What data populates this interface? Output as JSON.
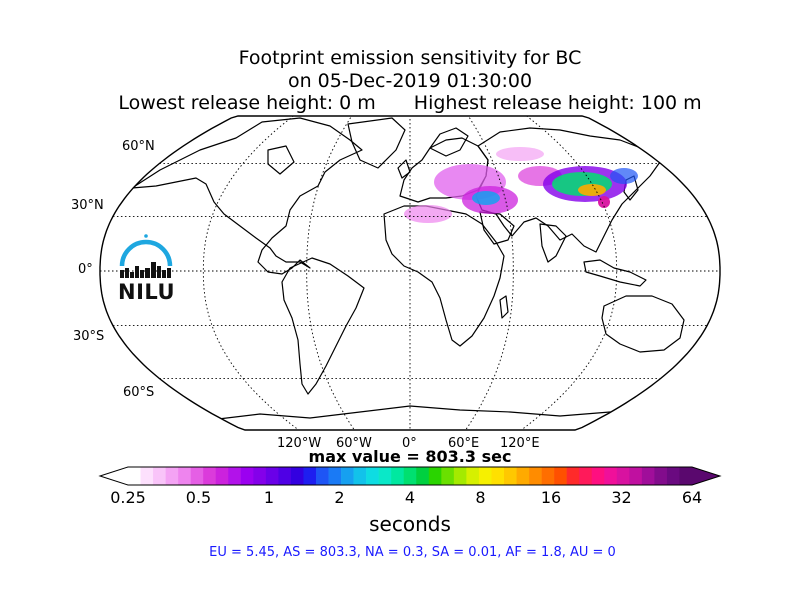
{
  "title": {
    "line1": "Footprint emission sensitivity for BC",
    "line2": "on 05-Dec-2019 01:30:00",
    "line3_left": "Lowest release height: 0 m",
    "line3_right": "Highest release height: 100 m"
  },
  "map": {
    "projection": "Robinson",
    "lat_labels": [
      "60°N",
      "30°N",
      "0°",
      "30°S",
      "60°S"
    ],
    "lon_labels": [
      "120°W",
      "60°W",
      "0°",
      "60°E",
      "120°E"
    ],
    "logo_text": "NILU",
    "logo_color": "#1ea7e0"
  },
  "max_value_text": "max value = 803.3 sec",
  "colorbar": {
    "tick_labels": [
      "0.25",
      "0.5",
      "1",
      "2",
      "4",
      "8",
      "16",
      "32",
      "64"
    ],
    "units": "seconds",
    "colors": [
      "#ffffff",
      "#fde0fd",
      "#f9c4f9",
      "#f4a3f4",
      "#ee84ee",
      "#e55fe5",
      "#db3bdb",
      "#cc22dd",
      "#b212ea",
      "#9b00f0",
      "#8400ea",
      "#6a00e8",
      "#4f00e5",
      "#3300e0",
      "#1e1ef0",
      "#1e55f5",
      "#1a7af5",
      "#16a0f0",
      "#12c2ea",
      "#0edce2",
      "#0ae8c8",
      "#00e8a0",
      "#00e070",
      "#00d040",
      "#2ad400",
      "#6ae000",
      "#a4ea00",
      "#d6f000",
      "#f6f000",
      "#ffe000",
      "#ffc800",
      "#ffaa00",
      "#ff8c00",
      "#ff6e00",
      "#ff5000",
      "#ff2a2a",
      "#ff1a5a",
      "#ff0f80",
      "#f0109a",
      "#d812a0",
      "#c010a0",
      "#a00e9a",
      "#820c8c",
      "#6a0a80",
      "#5a086e"
    ]
  },
  "summary": "EU = 5.45,  AS = 803.3,  NA = 0.3,  SA = 0.01,  AF = 1.8,  AU = 0"
}
